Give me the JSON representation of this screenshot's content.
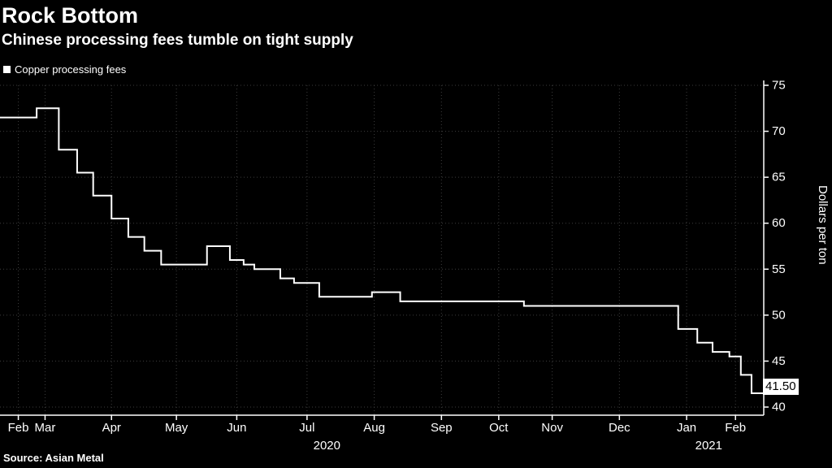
{
  "header": {
    "title": "Rock Bottom",
    "subtitle": "Chinese processing fees tumble on tight supply"
  },
  "legend": {
    "label": "Copper processing fees",
    "swatch_color": "#ffffff"
  },
  "source": "Source: Asian Metal",
  "chart_data": {
    "type": "line",
    "step": true,
    "series_name": "Copper processing fees",
    "title": "Rock Bottom",
    "subtitle": "Chinese processing fees tumble on tight supply",
    "ylabel": "Dollars per ton",
    "ylim": [
      40,
      75
    ],
    "yticks": [
      75,
      70,
      65,
      60,
      55,
      50,
      45,
      40
    ],
    "grid": "dotted",
    "legend_position": "top-left",
    "line_color": "#ffffff",
    "grid_color": "#3d3d3d",
    "background": "#000000",
    "last_label": "41.50",
    "last_value": 41.5,
    "xticks": [
      {
        "label": "Feb",
        "x": 0.024
      },
      {
        "label": "Mar",
        "x": 0.059
      },
      {
        "label": "Apr",
        "x": 0.146
      },
      {
        "label": "May",
        "x": 0.231
      },
      {
        "label": "Jun",
        "x": 0.31
      },
      {
        "label": "Jul",
        "x": 0.402
      },
      {
        "label": "Aug",
        "x": 0.49
      },
      {
        "label": "Sep",
        "x": 0.578
      },
      {
        "label": "Oct",
        "x": 0.653
      },
      {
        "label": "Nov",
        "x": 0.723
      },
      {
        "label": "Dec",
        "x": 0.811
      },
      {
        "label": "Jan",
        "x": 0.899
      },
      {
        "label": "Feb",
        "x": 0.963
      }
    ],
    "year_labels": [
      {
        "label": "2020",
        "x": 0.428
      },
      {
        "label": "2021",
        "x": 0.928
      }
    ],
    "steps": [
      {
        "x": 0.0,
        "v": 71.5
      },
      {
        "x": 0.048,
        "v": 72.5
      },
      {
        "x": 0.077,
        "v": 68.0
      },
      {
        "x": 0.101,
        "v": 65.5
      },
      {
        "x": 0.122,
        "v": 63.0
      },
      {
        "x": 0.146,
        "v": 60.5
      },
      {
        "x": 0.168,
        "v": 58.5
      },
      {
        "x": 0.189,
        "v": 57.0
      },
      {
        "x": 0.211,
        "v": 55.5
      },
      {
        "x": 0.271,
        "v": 57.5
      },
      {
        "x": 0.301,
        "v": 56.0
      },
      {
        "x": 0.319,
        "v": 55.5
      },
      {
        "x": 0.333,
        "v": 55.0
      },
      {
        "x": 0.367,
        "v": 54.0
      },
      {
        "x": 0.385,
        "v": 53.5
      },
      {
        "x": 0.418,
        "v": 52.0
      },
      {
        "x": 0.487,
        "v": 52.5
      },
      {
        "x": 0.524,
        "v": 51.5
      },
      {
        "x": 0.686,
        "v": 51.0
      },
      {
        "x": 0.888,
        "v": 48.5
      },
      {
        "x": 0.913,
        "v": 47.0
      },
      {
        "x": 0.933,
        "v": 46.0
      },
      {
        "x": 0.955,
        "v": 45.5
      },
      {
        "x": 0.97,
        "v": 43.5
      },
      {
        "x": 0.984,
        "v": 41.5
      }
    ]
  }
}
